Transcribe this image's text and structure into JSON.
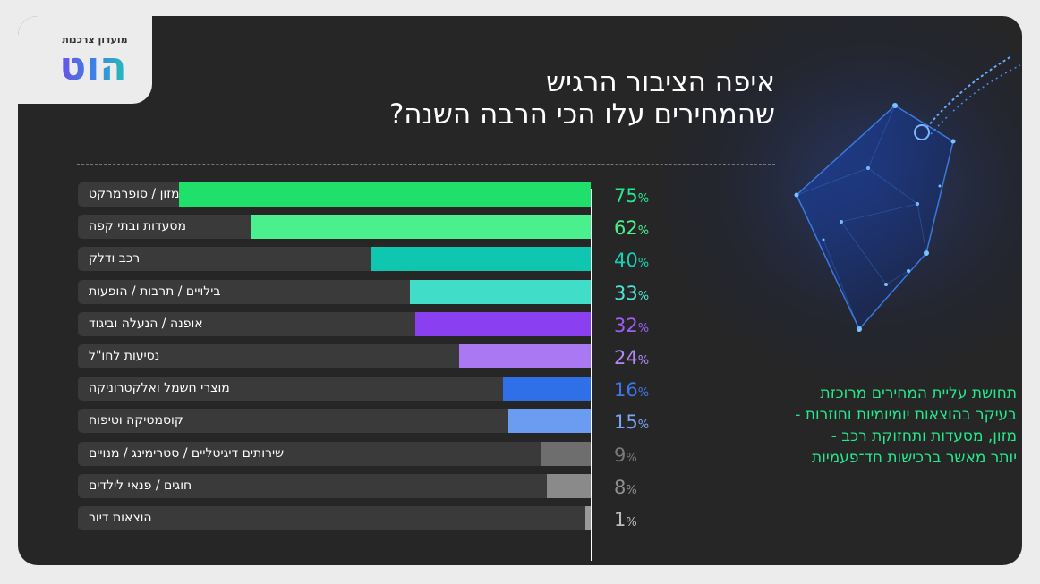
{
  "logo": {
    "sub": "מועדון צרכנות",
    "main": "הוט"
  },
  "title": {
    "line1": "איפה הציבור הרגיש",
    "line2": "שהמחירים עלו הכי הרבה השנה?"
  },
  "note": {
    "lines": [
      "תחושת עליית המחירים מרוכזת",
      "בעיקר בהוצאות יומיומיות וחוזרות -",
      "מזון, מסעדות ותחזוקת רכב -",
      "יותר מאשר ברכישות חד־פעמיות"
    ]
  },
  "percent_sign": "%",
  "chart_data": {
    "type": "bar",
    "orientation": "horizontal",
    "title": "איפה הציבור הרגיש שהמחירים עלו הכי הרבה השנה?",
    "unit": "%",
    "xlim": [
      0,
      100
    ],
    "categories": [
      "מזון / סופרמרקט",
      "מסעדות ובתי קפה",
      "רכב ודלק",
      "בילויים / תרבות / הופעות",
      "אופנה / הנעלה וביגוד",
      "נסיעות לחו\"ל",
      "מוצרי חשמל ואלקטרוניקה",
      "קוסמטיקה וטיפוח",
      "שירותים דיגיטליים / סטרימינג / מנויים",
      "חוגים / פנאי לילדים",
      "הוצאות דיור"
    ],
    "values": [
      75,
      62,
      40,
      33,
      32,
      24,
      16,
      15,
      9,
      8,
      1
    ],
    "colors": [
      "#1ee06a",
      "#4bf08e",
      "#0fc7b0",
      "#40ddc9",
      "#8a3ff0",
      "#a978f2",
      "#2f6fe8",
      "#6a9cf2",
      "#6e6e6e",
      "#8a8a8a",
      "#9a9a9a"
    ],
    "value_colors": [
      "#25e88d",
      "#4bf08e",
      "#14d1b5",
      "#4fe4d1",
      "#9c5ef3",
      "#b38af5",
      "#3a78ea",
      "#7aa7f5",
      "#7a7a7a",
      "#8f8f8f",
      "#bdbdbd"
    ]
  }
}
